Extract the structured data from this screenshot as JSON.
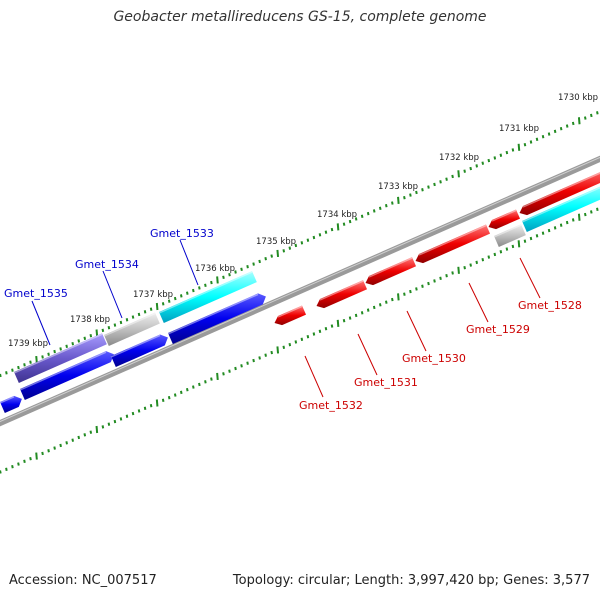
{
  "title": "Geobacter metallireducens GS-15, complete genome",
  "footer": {
    "accession": "Accession: NC_007517",
    "summary": "Topology: circular; Length: 3,997,420 bp; Genes: 3,577"
  },
  "ticks": [
    "1730 kbp",
    "1731 kbp",
    "1732 kbp",
    "1733 kbp",
    "1734 kbp",
    "1735 kbp",
    "1736 kbp",
    "1737 kbp",
    "1738 kbp",
    "1739 kbp"
  ],
  "gene_labels": {
    "gmet_1535": "Gmet_1535",
    "gmet_1534": "Gmet_1534",
    "gmet_1533": "Gmet_1533",
    "gmet_1532": "Gmet_1532",
    "gmet_1531": "Gmet_1531",
    "gmet_1530": "Gmet_1530",
    "gmet_1529": "Gmet_1529",
    "gmet_1528": "Gmet_1528"
  },
  "colors": {
    "forward_cds": "#00ffff",
    "reverse_cds": "#0000ee",
    "highlight_cds": "#ee0000",
    "other_cds": "#c0c0c0",
    "region_cds": "#6a5acd",
    "backbone": "#808080",
    "tick_mark": "#228b22",
    "label_blue": "#0000cc",
    "label_red": "#cc0000"
  }
}
